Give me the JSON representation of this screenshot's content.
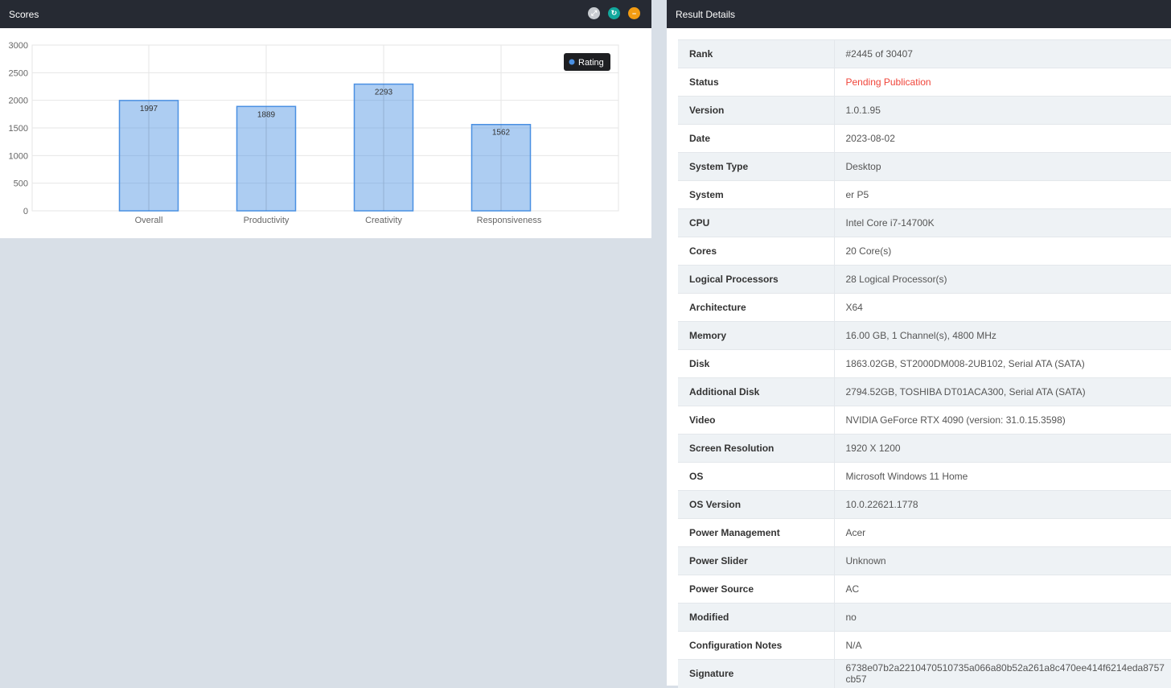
{
  "scores": {
    "title": "Scores",
    "buttons": [
      "expand-icon",
      "refresh-icon",
      "minimize-icon"
    ]
  },
  "chart_data": {
    "type": "bar",
    "categories": [
      "Overall",
      "Productivity",
      "Creativity",
      "Responsiveness"
    ],
    "series": [
      {
        "name": "Rating",
        "values": [
          1997,
          1889,
          2293,
          1562
        ]
      }
    ],
    "yticks": [
      0,
      500,
      1000,
      1500,
      2000,
      2500,
      3000
    ],
    "ylim": [
      0,
      3000
    ],
    "grid": true,
    "legend": "top-right",
    "color": "#4a90e2"
  },
  "details": {
    "title": "Result Details",
    "rows": [
      {
        "label": "Rank",
        "value": "#2445 of 30407"
      },
      {
        "label": "Status",
        "value": "Pending Publication",
        "color": "#f0453a"
      },
      {
        "label": "Version",
        "value": "1.0.1.95"
      },
      {
        "label": "Date",
        "value": "2023-08-02"
      },
      {
        "label": "System Type",
        "value": "Desktop"
      },
      {
        "label": "System",
        "value": "er P5"
      },
      {
        "label": "CPU",
        "value": "Intel Core i7-14700K"
      },
      {
        "label": "Cores",
        "value": "20 Core(s)"
      },
      {
        "label": "Logical Processors",
        "value": "28 Logical Processor(s)"
      },
      {
        "label": "Architecture",
        "value": "X64"
      },
      {
        "label": "Memory",
        "value": "16.00 GB, 1 Channel(s), 4800 MHz"
      },
      {
        "label": "Disk",
        "value": "1863.02GB, ST2000DM008-2UB102, Serial ATA (SATA)"
      },
      {
        "label": "Additional Disk",
        "value": "2794.52GB, TOSHIBA DT01ACA300, Serial ATA (SATA)"
      },
      {
        "label": "Video",
        "value": "NVIDIA GeForce RTX 4090 (version: 31.0.15.3598)"
      },
      {
        "label": "Screen Resolution",
        "value": "1920 X 1200"
      },
      {
        "label": "OS",
        "value": "Microsoft Windows 11 Home"
      },
      {
        "label": "OS Version",
        "value": "10.0.22621.1778"
      },
      {
        "label": "Power Management",
        "value": "Acer"
      },
      {
        "label": "Power Slider",
        "value": "Unknown"
      },
      {
        "label": "Power Source",
        "value": "AC"
      },
      {
        "label": "Modified",
        "value": "no"
      },
      {
        "label": "Configuration Notes",
        "value": "N/A"
      },
      {
        "label": "Signature",
        "value": "6738e07b2a2210470510735a066a80b52a261a8c470ee414f6214eda8757cb57"
      }
    ]
  }
}
